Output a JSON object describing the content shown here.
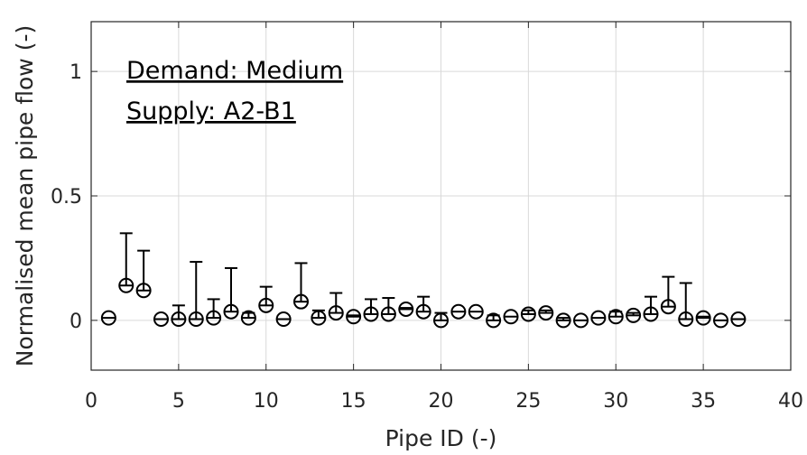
{
  "chart_data": {
    "type": "scatter",
    "title": "",
    "xlabel": "Pipe ID (-)",
    "ylabel": "Normalised mean pipe flow (-)",
    "xlim": [
      0,
      40
    ],
    "ylim": [
      -0.2,
      1.2
    ],
    "xticks": [
      0,
      5,
      10,
      15,
      20,
      25,
      30,
      35,
      40
    ],
    "yticks": [
      0,
      0.5,
      1
    ],
    "xtick_labels": [
      "0",
      "5",
      "10",
      "15",
      "20",
      "25",
      "30",
      "35",
      "40"
    ],
    "ytick_labels": [
      "0",
      "0.5",
      "1"
    ],
    "grid": true,
    "marker": "open-circle",
    "error_bars": "upper-only",
    "annotations": [
      "Demand: Medium",
      "Supply: A2-B1"
    ],
    "x": [
      1,
      2,
      3,
      4,
      5,
      6,
      7,
      8,
      9,
      10,
      11,
      12,
      13,
      14,
      15,
      16,
      17,
      18,
      19,
      20,
      21,
      22,
      23,
      24,
      25,
      26,
      27,
      28,
      29,
      30,
      31,
      32,
      33,
      34,
      35,
      36,
      37
    ],
    "y": [
      0.01,
      0.14,
      0.12,
      0.005,
      0.005,
      0.005,
      0.01,
      0.035,
      0.01,
      0.06,
      0.005,
      0.075,
      0.01,
      0.03,
      0.015,
      0.025,
      0.025,
      0.045,
      0.035,
      0.0,
      0.035,
      0.035,
      0.0,
      0.015,
      0.025,
      0.03,
      0.0,
      0.0,
      0.01,
      0.015,
      0.02,
      0.025,
      0.055,
      0.005,
      0.01,
      0.0,
      0.005
    ],
    "y_upper": [
      0.01,
      0.35,
      0.28,
      0.005,
      0.06,
      0.235,
      0.085,
      0.21,
      0.03,
      0.135,
      0.005,
      0.23,
      0.04,
      0.11,
      0.02,
      0.085,
      0.09,
      0.05,
      0.095,
      0.03,
      0.035,
      0.035,
      0.02,
      0.015,
      0.04,
      0.04,
      0.01,
      0.0,
      0.01,
      0.035,
      0.03,
      0.095,
      0.175,
      0.15,
      0.015,
      0.0,
      0.005
    ],
    "colors": {
      "marker": "#000000",
      "grid": "#d9d9d9",
      "axis": "#262626",
      "background": "#ffffff"
    }
  }
}
